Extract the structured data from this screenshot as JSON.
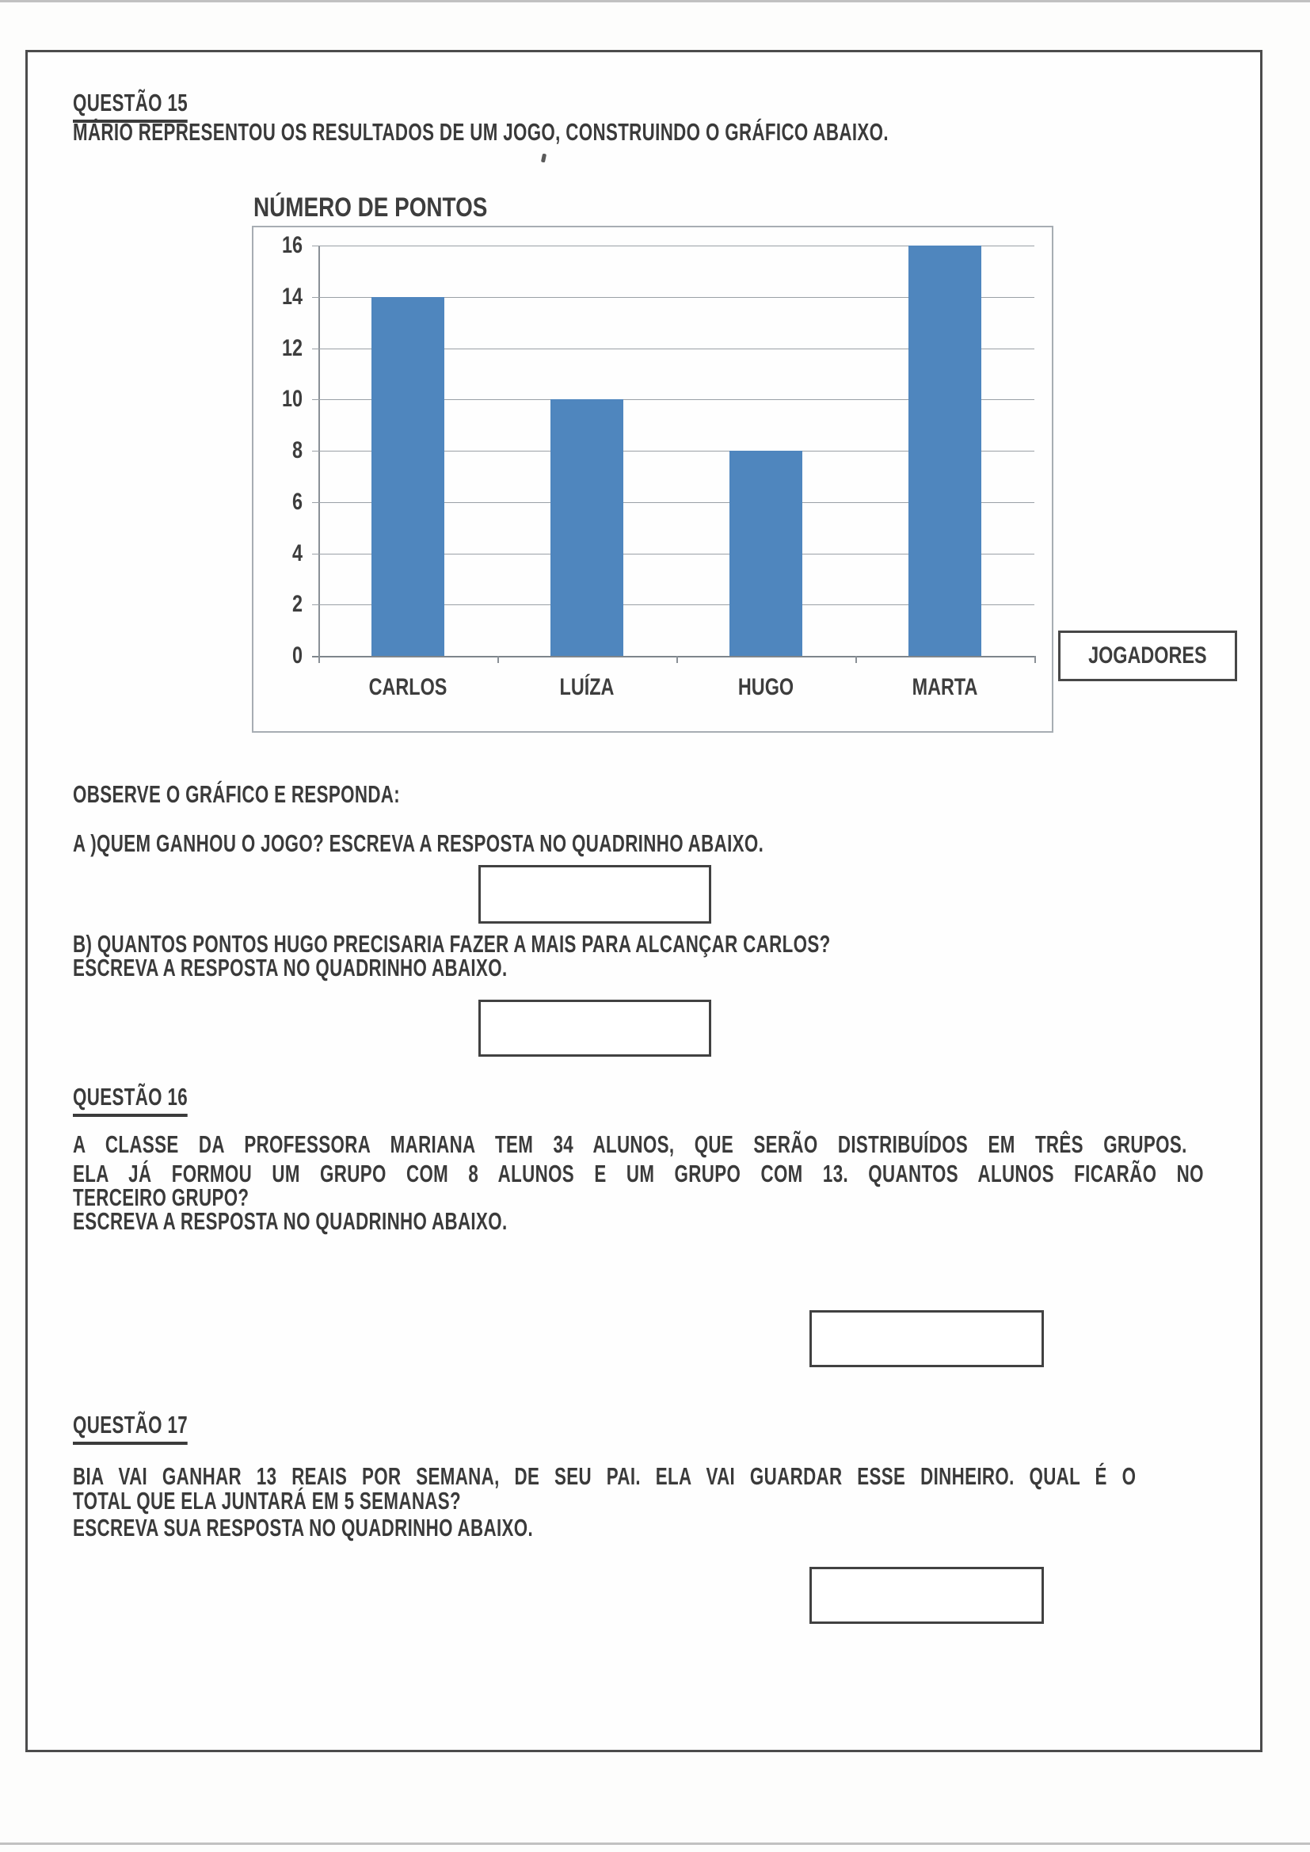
{
  "page": {
    "q15": {
      "title": "QUESTÃO 15",
      "intro": "MÁRIO REPRESENTOU OS RESULTADOS DE UM JOGO, CONSTRUINDO O GRÁFICO ABAIXO.",
      "observe": "OBSERVE O GRÁFICO E RESPONDA:",
      "item_a": "A )QUEM GANHOU O JOGO? ESCREVA A RESPOSTA NO QUADRINHO ABAIXO.",
      "item_b_line1": "B) QUANTOS PONTOS HUGO PRECISARIA FAZER A MAIS PARA ALCANÇAR CARLOS?",
      "item_b_line2": "ESCREVA A RESPOSTA NO QUADRINHO ABAIXO."
    },
    "q16": {
      "title": "QUESTÃO 16",
      "lines": [
        "A CLASSE DA PROFESSORA MARIANA TEM 34 ALUNOS, QUE SERÃO DISTRIBUÍDOS EM TRÊS GRUPOS.",
        "ELA JÁ FORMOU UM GRUPO COM 8 ALUNOS E UM GRUPO COM 13. QUANTOS ALUNOS FICARÃO NO",
        "TERCEIRO GRUPO?",
        "ESCREVA A RESPOSTA NO QUADRINHO ABAIXO."
      ]
    },
    "q17": {
      "title": "QUESTÃO 17",
      "lines": [
        "BIA VAI GANHAR 13 REAIS POR SEMANA, DE SEU PAI. ELA VAI GUARDAR ESSE DINHEIRO. QUAL É O",
        "TOTAL QUE ELA JUNTARÁ EM 5 SEMANAS?",
        "ESCREVA SUA RESPOSTA NO QUADRINHO ABAIXO."
      ]
    }
  },
  "chart_data": {
    "type": "bar",
    "title": "NÚMERO DE PONTOS",
    "categories": [
      "CARLOS",
      "LUÍZA",
      "HUGO",
      "MARTA"
    ],
    "values": [
      14,
      10,
      8,
      16
    ],
    "xlabel": "JOGADORES",
    "ylabel": "",
    "ylim": [
      0,
      16
    ],
    "y_tick_step": 2,
    "grid": true,
    "legend": "none",
    "bar_color": "#4f86be"
  },
  "colors": {
    "bar_blue": "#4f86be",
    "ink": "#3a3a3a",
    "page_border": "#4c4c4c"
  }
}
